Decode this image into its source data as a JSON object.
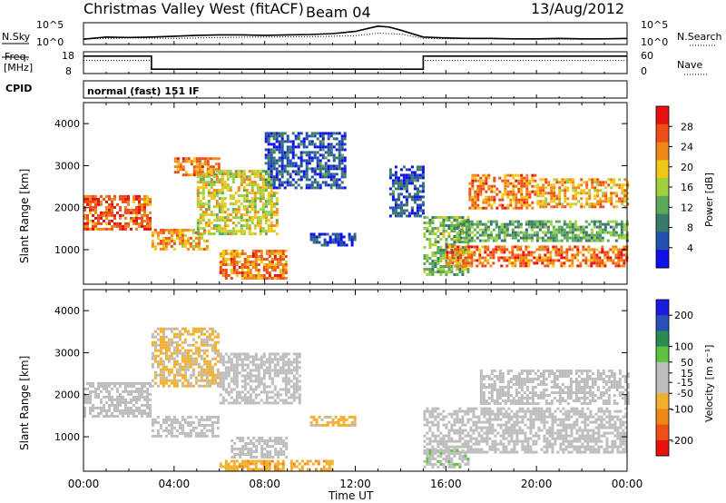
{
  "header": {
    "station": "Christmas Valley West (fitACF)",
    "beam": "Beam 04",
    "date": "13/Aug/2012"
  },
  "noise_panel": {
    "left_label": "N.Sky",
    "left_ticks": [
      "10^5",
      "10^0"
    ],
    "right_label": "N.Search",
    "right_ticks": [
      "10^5",
      "10^0"
    ]
  },
  "freq_panel": {
    "left_label_1": "Freq.",
    "left_label_2": "[MHz]",
    "left_ticks": [
      "18",
      "8"
    ],
    "right_label": "Nave",
    "right_ticks": [
      "60",
      "0"
    ]
  },
  "cpid": {
    "label": "CPID",
    "mode": "normal (fast) 151 IF"
  },
  "colors": {
    "power_scale": [
      "#1010e8",
      "#2450b0",
      "#3a7a6a",
      "#5aaa5a",
      "#9ed040",
      "#f0c818",
      "#f08818",
      "#f04c18",
      "#e81010"
    ],
    "velocity_scale": [
      "#e81010",
      "#f05018",
      "#f08818",
      "#f0b030",
      "#bdbdbd",
      "#bdbdbd",
      "#60c040",
      "#2c8a50",
      "#2a50b8",
      "#1a1ae0"
    ]
  },
  "chart_data": [
    {
      "type": "line",
      "title": "N.Sky / N.Search",
      "xlabel": "",
      "xlim": [
        0,
        24
      ],
      "ylim": [
        0,
        5
      ],
      "ylabel_scale": "log10",
      "series": [
        {
          "name": "N.Sky",
          "x": [
            0,
            1,
            2,
            3,
            4,
            5,
            6,
            7,
            8,
            9,
            10,
            11,
            12,
            12.5,
            13,
            13.5,
            14,
            15,
            16,
            17,
            18,
            19,
            20,
            21,
            22,
            23,
            24
          ],
          "values": [
            1.2,
            1.7,
            1.6,
            1.7,
            1.9,
            2.1,
            2.2,
            2.2,
            2.1,
            2.2,
            2.3,
            2.5,
            3.0,
            3.6,
            4.2,
            4.0,
            3.3,
            1.7,
            1.5,
            1.4,
            1.4,
            1.3,
            1.3,
            1.4,
            1.3,
            1.3,
            1.4
          ]
        },
        {
          "name": "N.Search",
          "x": [
            0,
            2,
            4,
            6,
            8,
            10,
            12,
            13,
            14,
            15,
            16,
            18,
            20,
            22,
            24
          ],
          "values": [
            1.3,
            1.5,
            1.4,
            1.6,
            1.7,
            1.8,
            2.0,
            2.6,
            2.4,
            1.4,
            1.3,
            1.3,
            1.2,
            1.2,
            1.3
          ]
        }
      ]
    },
    {
      "type": "line",
      "title": "Freq. / Nave",
      "xlim": [
        0,
        24
      ],
      "ylim": [
        8,
        18
      ],
      "series": [
        {
          "name": "Freq.",
          "x": [
            0,
            3.0,
            3.0,
            15.0,
            15.0,
            24
          ],
          "values": [
            16,
            16,
            10,
            10,
            16,
            16
          ]
        },
        {
          "name": "Nave",
          "x": [
            0,
            3.0,
            3.0,
            15.0,
            15.0,
            24
          ],
          "values": [
            14,
            14,
            8,
            8,
            14,
            14
          ]
        }
      ]
    },
    {
      "type": "heatmap",
      "title": "Power",
      "xlabel": "",
      "ylabel": "Slant Range [km]",
      "xlim": [
        0,
        24
      ],
      "ylim": [
        180,
        4500
      ],
      "colorbar_label": "Power [dB]",
      "colorbar_ticks": [
        28,
        24,
        20,
        16,
        12,
        8,
        4
      ],
      "colorbar_range": [
        0,
        32
      ],
      "echo_regions": [
        {
          "t0": 0.0,
          "t1": 3.0,
          "r0": 1500,
          "r1": 2300,
          "value": 26
        },
        {
          "t0": 3.0,
          "t1": 5.5,
          "r0": 1000,
          "r1": 1500,
          "value": 22
        },
        {
          "t0": 4.0,
          "t1": 6.0,
          "r0": 2800,
          "r1": 3200,
          "value": 24
        },
        {
          "t0": 5.0,
          "t1": 8.5,
          "r0": 1400,
          "r1": 2900,
          "value": 18
        },
        {
          "t0": 6.0,
          "t1": 9.0,
          "r0": 350,
          "r1": 1000,
          "value": 24
        },
        {
          "t0": 8.0,
          "t1": 11.5,
          "r0": 2500,
          "r1": 3800,
          "value": 6
        },
        {
          "t0": 10.0,
          "t1": 12.0,
          "r0": 1100,
          "r1": 1400,
          "value": 5
        },
        {
          "t0": 13.5,
          "t1": 15.0,
          "r0": 1800,
          "r1": 3000,
          "value": 6
        },
        {
          "t0": 15.0,
          "t1": 17.0,
          "r0": 400,
          "r1": 1800,
          "value": 14
        },
        {
          "t0": 16.0,
          "t1": 24.0,
          "r0": 600,
          "r1": 1100,
          "value": 25
        },
        {
          "t0": 17.0,
          "t1": 20.0,
          "r0": 2000,
          "r1": 2800,
          "value": 24
        },
        {
          "t0": 20.0,
          "t1": 24.0,
          "r0": 2000,
          "r1": 2700,
          "value": 22
        },
        {
          "t0": 16.5,
          "t1": 24.0,
          "r0": 1200,
          "r1": 1700,
          "value": 12
        }
      ]
    },
    {
      "type": "heatmap",
      "title": "Velocity",
      "xlabel": "Time UT",
      "ylabel": "Slant Range [km]",
      "xlim": [
        0,
        24
      ],
      "ylim": [
        180,
        4500
      ],
      "colorbar_label": "Velocity [m s⁻¹]",
      "colorbar_ticks": [
        200,
        100,
        50,
        15,
        -15,
        -50,
        -100,
        -200
      ],
      "colorbar_range": [
        -250,
        250
      ],
      "echo_regions": [
        {
          "t0": 0.0,
          "t1": 3.0,
          "r0": 1500,
          "r1": 2300,
          "value": 0
        },
        {
          "t0": 3.0,
          "t1": 6.0,
          "r0": 1000,
          "r1": 1500,
          "value": 0
        },
        {
          "t0": 3.0,
          "t1": 6.0,
          "r0": 2200,
          "r1": 3600,
          "value": -60
        },
        {
          "t0": 6.0,
          "t1": 9.5,
          "r0": 1800,
          "r1": 3000,
          "value": 0
        },
        {
          "t0": 6.0,
          "t1": 11.0,
          "r0": 200,
          "r1": 450,
          "value": -80
        },
        {
          "t0": 6.5,
          "t1": 9.0,
          "r0": 500,
          "r1": 1000,
          "value": 0
        },
        {
          "t0": 10.0,
          "t1": 12.0,
          "r0": 1300,
          "r1": 1500,
          "value": -70
        },
        {
          "t0": 15.0,
          "t1": 24.0,
          "r0": 600,
          "r1": 1700,
          "value": 0
        },
        {
          "t0": 17.5,
          "t1": 24.0,
          "r0": 1800,
          "r1": 2600,
          "value": 0
        },
        {
          "t0": 15.0,
          "t1": 17.0,
          "r0": 300,
          "r1": 700,
          "value": 30
        }
      ]
    }
  ],
  "axes": {
    "time_ticks": [
      "00:00",
      "04:00",
      "08:00",
      "12:00",
      "16:00",
      "20:00",
      "00:00"
    ],
    "range_ticks": [
      "1000",
      "2000",
      "3000",
      "4000"
    ],
    "range_tick_values": [
      1000,
      2000,
      3000,
      4000
    ],
    "range_label": "Slant Range [km]",
    "time_label": "Time UT",
    "power_label": "Power [dB]",
    "velocity_label": "Velocity [m s⁻¹]"
  }
}
